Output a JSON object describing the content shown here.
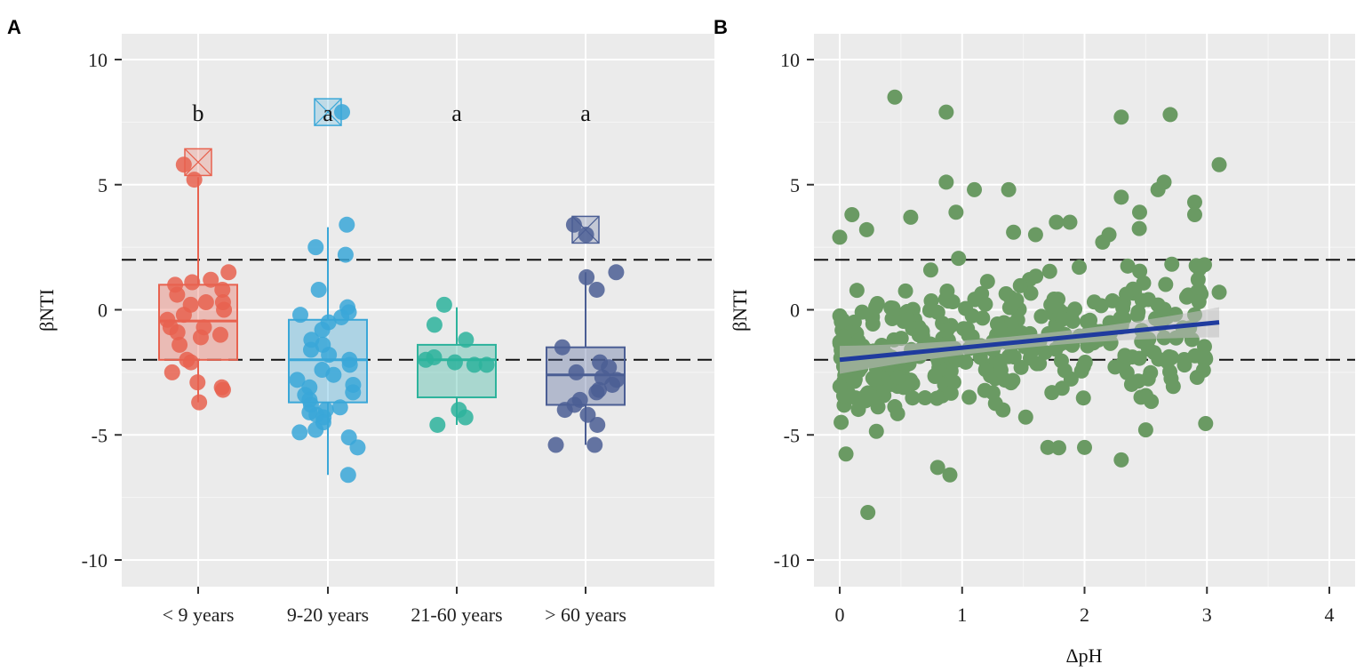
{
  "chart_data": [
    {
      "panel": "A",
      "type": "box",
      "ylabel": "βNTI",
      "xlabel": "",
      "ylim": [
        -11.5,
        11
      ],
      "yticks": [
        -10,
        -5,
        0,
        5,
        10
      ],
      "ytick_labels": [
        "-10",
        "-5",
        "0",
        "5",
        "10"
      ],
      "reference_lines": [
        2,
        -2
      ],
      "categories": [
        "< 9 years",
        "9-20 years",
        "21-60 years",
        "> 60 years"
      ],
      "groups": [
        {
          "name": "< 9 years",
          "color": "#e8624f",
          "letter": "b",
          "box": {
            "q1": -2.0,
            "median": -0.45,
            "q3": 1.0,
            "whisker_low": -3.7,
            "whisker_high": 5.3
          },
          "outliers": [
            5.9
          ],
          "points": [
            5.8,
            5.2,
            1.5,
            1.1,
            1.2,
            1.0,
            0.8,
            0.6,
            0.3,
            0.2,
            0.3,
            0.0,
            -0.2,
            -0.4,
            -0.7,
            -0.7,
            -0.9,
            -1.0,
            -1.1,
            -1.4,
            -2.0,
            -2.1,
            -2.5,
            -2.9,
            -3.1,
            -3.2,
            -3.7
          ]
        },
        {
          "name": "9-20 years",
          "color": "#3aa7d8",
          "letter": "a",
          "box": {
            "q1": -3.7,
            "median": -2.0,
            "q3": -0.4,
            "whisker_low": -6.6,
            "whisker_high": 3.3
          },
          "outliers": [
            7.9
          ],
          "points": [
            7.9,
            3.4,
            2.5,
            2.2,
            0.8,
            0.1,
            -0.1,
            -0.2,
            -0.3,
            -0.5,
            -0.8,
            -1.2,
            -1.4,
            -1.6,
            -1.8,
            -2.0,
            -2.2,
            -2.4,
            -2.6,
            -2.8,
            -3.0,
            -3.1,
            -3.3,
            -3.4,
            -3.6,
            -3.8,
            -3.9,
            -4.0,
            -4.1,
            -4.2,
            -4.3,
            -4.5,
            -4.8,
            -4.9,
            -5.1,
            -5.5,
            -6.6
          ]
        },
        {
          "name": "21-60 years",
          "color": "#2db39c",
          "letter": "a",
          "box": {
            "q1": -3.5,
            "median": -2.0,
            "q3": -1.4,
            "whisker_low": -4.6,
            "whisker_high": 0.1
          },
          "outliers": [],
          "points": [
            0.2,
            -0.6,
            -1.2,
            -1.9,
            -2.0,
            -2.1,
            -2.2,
            -2.2,
            -4.0,
            -4.3,
            -4.6
          ]
        },
        {
          "name": "> 60 years",
          "color": "#4b5e94",
          "letter": "a",
          "box": {
            "q1": -3.8,
            "median": -2.6,
            "q3": -1.5,
            "whisker_low": -5.4,
            "whisker_high": 1.5
          },
          "outliers": [
            3.2
          ],
          "points": [
            3.4,
            3.0,
            1.5,
            1.3,
            0.8,
            -1.5,
            -2.1,
            -2.3,
            -2.5,
            -2.7,
            -2.8,
            -3.0,
            -3.2,
            -3.3,
            -3.6,
            -3.8,
            -4.0,
            -4.2,
            -4.6,
            -5.4,
            -5.4
          ]
        }
      ]
    },
    {
      "panel": "B",
      "type": "scatter",
      "xlabel": "ΔpH",
      "ylabel": "βNTI",
      "xlim": [
        -0.2,
        4.2
      ],
      "ylim": [
        -11.5,
        11
      ],
      "xticks": [
        0,
        1,
        2,
        3,
        4
      ],
      "xtick_labels": [
        "0",
        "1",
        "2",
        "3",
        "4"
      ],
      "yticks": [
        -10,
        -5,
        0,
        5,
        10
      ],
      "ytick_labels": [
        "-10",
        "-5",
        "0",
        "5",
        "10"
      ],
      "reference_lines": [
        2,
        -2
      ],
      "point_color": "#6a9a63",
      "regression": {
        "x0": 0.0,
        "y0": -2.0,
        "x1": 3.1,
        "y1": -0.5,
        "color": "#1f3b9e",
        "band_color": "#bdbdbd"
      },
      "n_points": 420,
      "highlight_points": [
        [
          0.45,
          8.5
        ],
        [
          0.87,
          7.9
        ],
        [
          2.3,
          7.7
        ],
        [
          2.7,
          7.8
        ],
        [
          3.1,
          5.8
        ],
        [
          0.87,
          5.1
        ],
        [
          1.1,
          4.8
        ],
        [
          1.38,
          4.8
        ],
        [
          2.3,
          4.5
        ],
        [
          2.65,
          5.1
        ],
        [
          2.6,
          4.8
        ],
        [
          2.9,
          4.3
        ],
        [
          2.45,
          3.9
        ],
        [
          0.95,
          3.9
        ],
        [
          0.58,
          3.7
        ],
        [
          0.1,
          3.8
        ],
        [
          0.22,
          3.2
        ],
        [
          1.42,
          3.1
        ],
        [
          1.6,
          3.0
        ],
        [
          0.0,
          2.9
        ],
        [
          1.77,
          3.5
        ],
        [
          1.88,
          3.5
        ],
        [
          2.2,
          3.0
        ],
        [
          2.9,
          3.8
        ],
        [
          0.23,
          -8.1
        ],
        [
          0.9,
          -6.6
        ],
        [
          0.8,
          -6.3
        ],
        [
          2.3,
          -6.0
        ],
        [
          1.7,
          -5.5
        ],
        [
          2.0,
          -5.5
        ],
        [
          2.98,
          1.8
        ],
        [
          3.1,
          0.7
        ],
        [
          2.9,
          -0.2
        ],
        [
          2.92,
          -2.7
        ],
        [
          2.5,
          -4.8
        ]
      ]
    }
  ]
}
